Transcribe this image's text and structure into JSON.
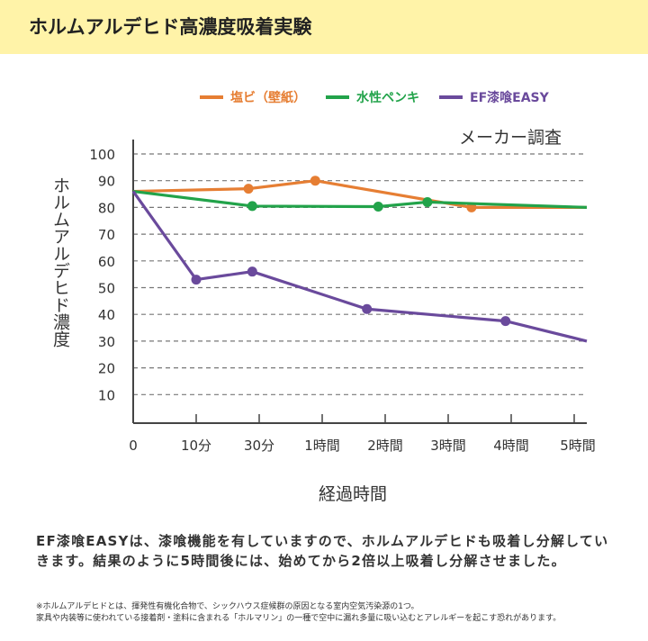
{
  "header": {
    "title": "ホルムアルデヒド高濃度吸着実験"
  },
  "chart_data": {
    "type": "line",
    "source_label": "メーカー調査",
    "xlabel": "経過時間",
    "ylabel": "ホルムアルデヒド濃度",
    "x_tick_labels": [
      "0",
      "10分",
      "30分",
      "1時間",
      "2時間",
      "3時間",
      "4時間",
      "5時間"
    ],
    "y_ticks": [
      10,
      20,
      30,
      40,
      50,
      60,
      70,
      80,
      90,
      100
    ],
    "ylim": [
      0,
      100
    ],
    "grid": "horizontal dashed",
    "legend_position": "top",
    "series": [
      {
        "name": "塩ビ（壁紙）",
        "color": "#e67e33",
        "points": [
          [
            0,
            86
          ],
          [
            1.83,
            87
          ],
          [
            2.89,
            90
          ],
          [
            5.37,
            80
          ],
          [
            7.2,
            80
          ]
        ],
        "markers": [
          1,
          2,
          3
        ]
      },
      {
        "name": "水性ペンキ",
        "color": "#22a34a",
        "points": [
          [
            0,
            86
          ],
          [
            1.89,
            80.5
          ],
          [
            3.89,
            80.3
          ],
          [
            4.67,
            82
          ],
          [
            7.2,
            80
          ]
        ],
        "markers": [
          1,
          2,
          3
        ]
      },
      {
        "name": "EF漆喰EASY",
        "color": "#6a4a9c",
        "points": [
          [
            0,
            86
          ],
          [
            1,
            53
          ],
          [
            1.89,
            56
          ],
          [
            3.71,
            42
          ],
          [
            5.91,
            37.5
          ],
          [
            7.2,
            30
          ]
        ],
        "markers": [
          1,
          2,
          3,
          4
        ]
      }
    ]
  },
  "description": "EF漆喰EASYは、漆喰機能を有していますので、ホルムアルデヒドも吸着し分解していきます。結果のように5時間後には、始めてから2倍以上吸着し分解させました。",
  "note": "※ホルムアルデヒドとは、揮発性有機化合物で、シックハウス症候群の原因となる室内空気汚染源の1つ。\n家具や内装等に使われている接着剤・塗料に含まれる「ホルマリン」の一種で空中に漏れ多量に吸い込むとアレルギーを起こす恐れがあります。"
}
